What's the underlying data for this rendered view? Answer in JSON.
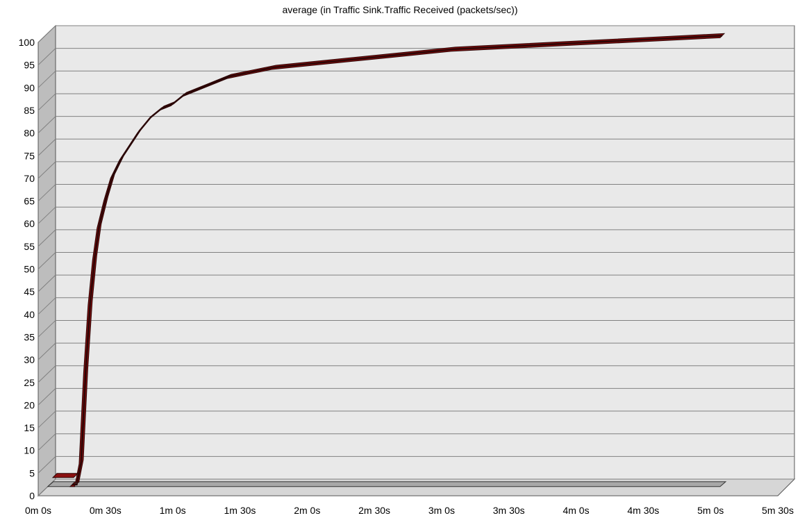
{
  "chart_data": {
    "type": "line",
    "title": "average (in Traffic Sink.Traffic Received (packets/sec))",
    "xlabel": "",
    "ylabel": "",
    "ylim": [
      0,
      100
    ],
    "xlim": [
      0,
      330
    ],
    "grid": true,
    "legend": "none",
    "x_ticks": [
      "0m 0s",
      "0m 30s",
      "1m 0s",
      "1m 30s",
      "2m 0s",
      "2m 30s",
      "3m 0s",
      "3m 30s",
      "4m 0s",
      "4m 30s",
      "5m 0s",
      "5m 30s"
    ],
    "y_ticks": [
      "0",
      "5",
      "10",
      "15",
      "20",
      "25",
      "30",
      "35",
      "40",
      "45",
      "50",
      "55",
      "60",
      "65",
      "70",
      "75",
      "80",
      "85",
      "90",
      "95",
      "100"
    ],
    "series": [
      {
        "color": "#8b1010",
        "x": [
          10,
          12,
          14,
          16,
          18,
          20,
          22,
          25,
          28,
          32,
          36,
          40,
          45,
          50,
          55,
          60,
          70,
          80,
          90,
          100,
          120,
          140,
          160,
          180,
          200,
          220,
          240,
          260,
          280,
          300
        ],
        "y": [
          0,
          0,
          5,
          25,
          40,
          50,
          57,
          63,
          68,
          72,
          75,
          78,
          81,
          83,
          84,
          86,
          88,
          90,
          91,
          92,
          93,
          94,
          95,
          96,
          96.5,
          97,
          97.5,
          98,
          98.5,
          99
        ]
      },
      {
        "color": "#a8a8a8",
        "x": [
          0,
          10,
          13,
          20,
          40,
          60,
          100,
          150,
          200,
          250,
          300
        ],
        "y": [
          0,
          0,
          0,
          0,
          0,
          0,
          0,
          0,
          0,
          0,
          0
        ]
      }
    ]
  },
  "colors": {
    "wall": "#e9e9e9",
    "side_wall": "#bdbdbd",
    "grid": "#808080",
    "line": "#8b1010",
    "line_edge": "#2a0606",
    "baseline": "#a8a8a8"
  }
}
